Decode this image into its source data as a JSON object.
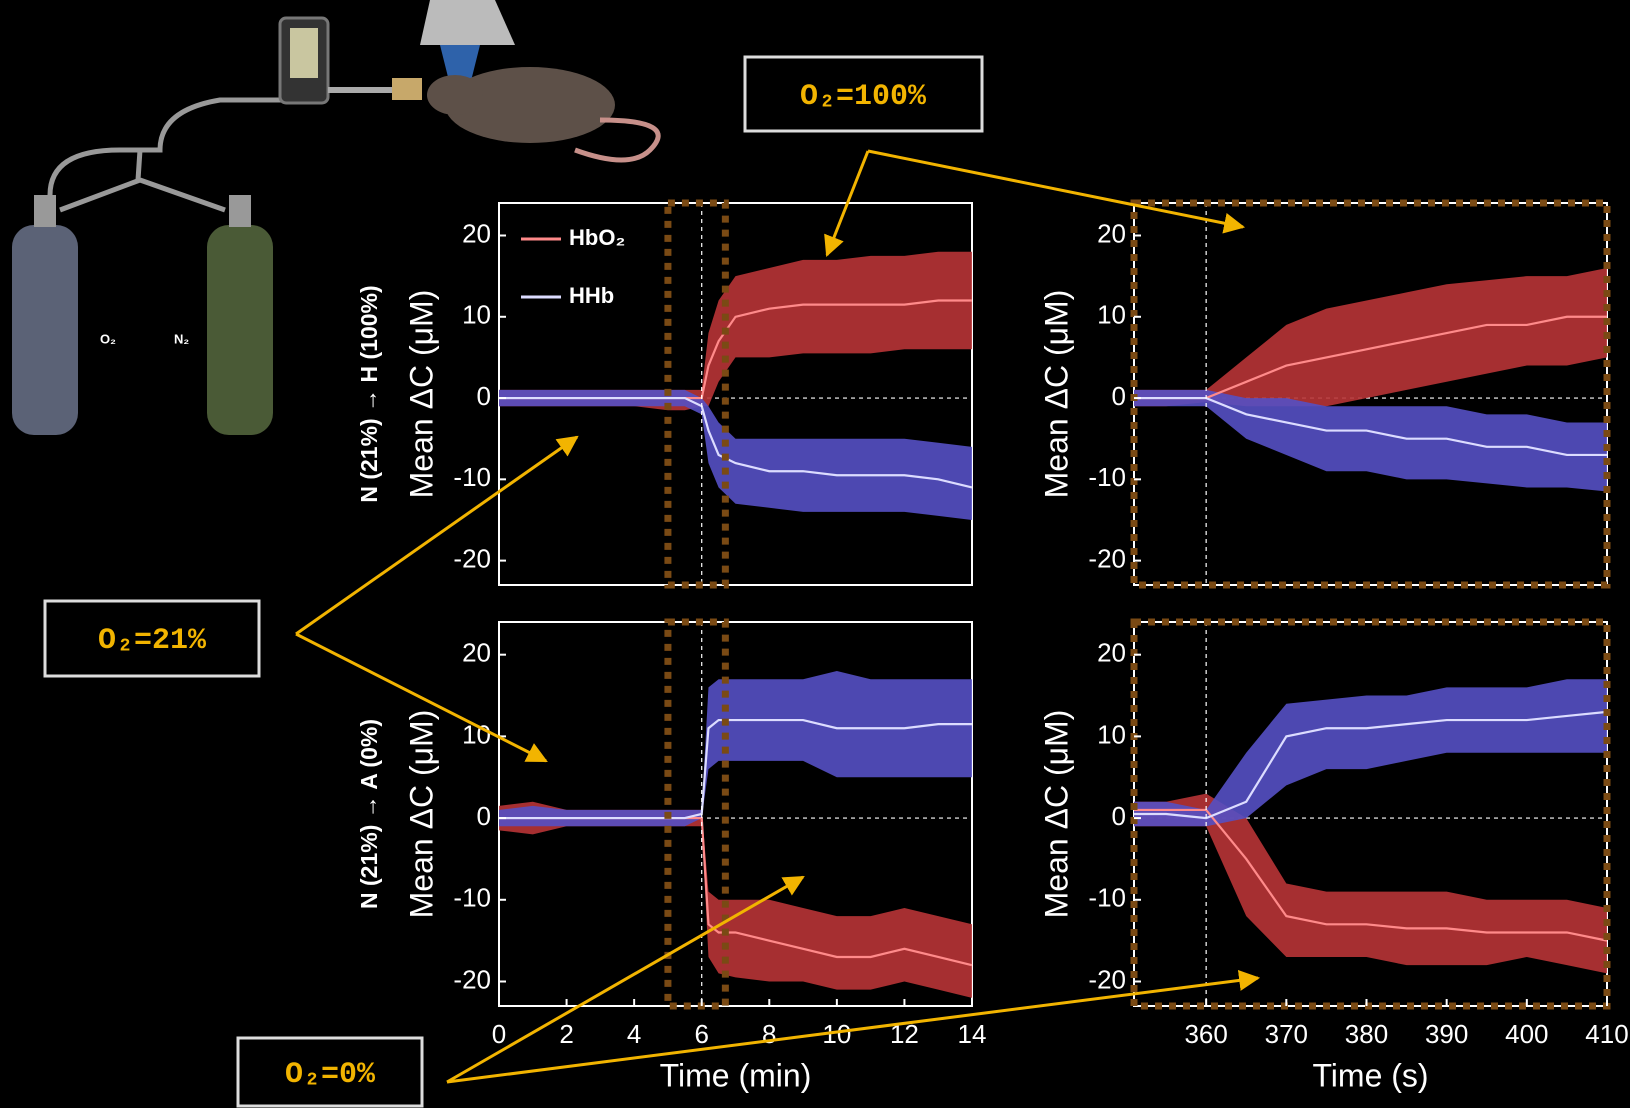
{
  "annotations": [
    "O₂=100%",
    "O₂=21%",
    "O₂=0%"
  ],
  "illustration": {
    "cylinders": [
      "O₂",
      "N₂"
    ]
  },
  "chart_data": [
    {
      "type": "line",
      "row_label": "N (21%) → H (100%)",
      "ylabel": "Mean ΔC (μM)",
      "legend": true,
      "xlim": [
        0,
        14
      ],
      "ylim": [
        -23,
        24
      ],
      "yticks": [
        -20,
        -10,
        0,
        10,
        20
      ],
      "vline": 6,
      "hline": 0,
      "highlight": [
        5,
        6.7
      ],
      "x": [
        0,
        1,
        2,
        3,
        4,
        5,
        5.5,
        6,
        6.2,
        6.5,
        7,
        8,
        9,
        10,
        11,
        12,
        13,
        14
      ],
      "series": [
        {
          "name": "HbO₂",
          "color": "#b83436",
          "line_color": "#ff8a8a",
          "values": [
            0,
            0,
            0,
            0,
            0,
            0,
            0,
            0,
            4,
            7,
            10,
            11,
            11.5,
            11.5,
            11.5,
            11.5,
            12,
            12
          ],
          "lower": [
            -1,
            -1,
            -1,
            -1,
            -1,
            -1.5,
            -1.5,
            -1,
            -1,
            2,
            5,
            5,
            5.5,
            5.5,
            5.5,
            6,
            6,
            6
          ],
          "upper": [
            1,
            1,
            1,
            1,
            1,
            1,
            1,
            1,
            8,
            12,
            15,
            16,
            17,
            17,
            17.5,
            17.5,
            18,
            18
          ]
        },
        {
          "name": "HHb",
          "color": "#5550c4",
          "line_color": "#dcdcff",
          "values": [
            0,
            0,
            0,
            0,
            0,
            0,
            0,
            -1,
            -4,
            -7,
            -8,
            -9,
            -9,
            -9.5,
            -9.5,
            -9.5,
            -10,
            -11
          ],
          "lower": [
            -1,
            -1,
            -1,
            -1,
            -1,
            -1,
            -1,
            -2,
            -8,
            -11,
            -13,
            -13.5,
            -14,
            -14,
            -14,
            -14,
            -14.5,
            -15
          ],
          "upper": [
            1,
            1,
            1,
            1,
            1,
            1,
            1,
            0,
            -1,
            -3,
            -5,
            -5,
            -5,
            -5,
            -5,
            -5,
            -5.5,
            -6
          ]
        }
      ]
    },
    {
      "type": "line",
      "ylabel": "Mean ΔC (μM)",
      "xlim": [
        351,
        410
      ],
      "ylim": [
        -23,
        24
      ],
      "yticks": [
        -20,
        -10,
        0,
        10,
        20
      ],
      "vline": 360,
      "hline": 0,
      "x": [
        351,
        355,
        360,
        365,
        370,
        375,
        380,
        385,
        390,
        395,
        400,
        405,
        410
      ],
      "series": [
        {
          "color": "#b83436",
          "line_color": "#ff8a8a",
          "values": [
            0,
            0,
            0,
            2,
            4,
            5,
            6,
            7,
            8,
            9,
            9,
            10,
            10
          ],
          "lower": [
            -1,
            -1,
            -0.5,
            -1,
            -1,
            -1,
            0,
            1,
            2,
            3,
            4,
            4,
            5
          ],
          "upper": [
            1,
            1,
            1,
            5,
            9,
            11,
            12,
            13,
            14,
            14.5,
            15,
            15,
            16
          ]
        },
        {
          "color": "#5550c4",
          "line_color": "#dcdcff",
          "values": [
            0,
            0,
            0,
            -2,
            -3,
            -4,
            -4,
            -5,
            -5,
            -6,
            -6,
            -7,
            -7
          ],
          "lower": [
            -1,
            -1,
            -1,
            -5,
            -7,
            -9,
            -9,
            -10,
            -10,
            -10.5,
            -11,
            -11,
            -11.5
          ],
          "upper": [
            1,
            1,
            1,
            0,
            0,
            -1,
            -1,
            -1,
            -1,
            -2,
            -2,
            -3,
            -3
          ]
        }
      ]
    },
    {
      "type": "line",
      "row_label": "N (21%) → A (0%)",
      "ylabel": "Mean ΔC (μM)",
      "xlabel": "Time (min)",
      "xlim": [
        0,
        14
      ],
      "xticks": [
        0,
        2,
        4,
        6,
        8,
        10,
        12,
        14
      ],
      "ylim": [
        -23,
        24
      ],
      "yticks": [
        -20,
        -10,
        0,
        10,
        20
      ],
      "vline": 6,
      "hline": 0,
      "highlight": [
        5,
        6.7
      ],
      "x": [
        0,
        1,
        2,
        3,
        4,
        5,
        5.5,
        6,
        6.2,
        6.5,
        7,
        8,
        9,
        10,
        11,
        12,
        13,
        14
      ],
      "series": [
        {
          "color": "#b83436",
          "line_color": "#ff8a8a",
          "values": [
            0,
            0,
            0,
            0,
            0,
            0,
            0,
            0,
            -13,
            -14,
            -14,
            -15,
            -16,
            -17,
            -17,
            -16,
            -17,
            -18
          ],
          "lower": [
            -1.5,
            -2,
            -1,
            -1,
            -1,
            -1,
            -1,
            -1,
            -17,
            -19,
            -19.5,
            -20,
            -20,
            -21,
            -21,
            -20,
            -21,
            -22
          ],
          "upper": [
            1.5,
            2,
            1,
            1,
            1,
            1,
            1,
            1,
            -9,
            -10,
            -10,
            -10,
            -11,
            -12,
            -12,
            -11,
            -12,
            -13
          ]
        },
        {
          "color": "#5550c4",
          "line_color": "#dcdcff",
          "values": [
            0,
            0,
            0,
            0,
            0,
            0,
            0,
            0.5,
            11,
            12,
            12,
            12,
            12,
            11,
            11,
            11,
            11.5,
            11.5
          ],
          "lower": [
            -1,
            -1,
            -1,
            -1,
            -1,
            -1,
            -1,
            0,
            6,
            7,
            7,
            7,
            7,
            5,
            5,
            5,
            5,
            5
          ],
          "upper": [
            1,
            1.5,
            1,
            1,
            1,
            1,
            1,
            1,
            16,
            17,
            17,
            17,
            17,
            18,
            17,
            17,
            17,
            17
          ]
        }
      ]
    },
    {
      "type": "line",
      "ylabel": "Mean ΔC (μM)",
      "xlabel": "Time (s)",
      "xlim": [
        351,
        410
      ],
      "xticks": [
        360,
        370,
        380,
        390,
        400,
        410
      ],
      "ylim": [
        -23,
        24
      ],
      "yticks": [
        -20,
        -10,
        0,
        10,
        20
      ],
      "vline": 360,
      "hline": 0,
      "x": [
        351,
        355,
        360,
        365,
        370,
        375,
        380,
        385,
        390,
        395,
        400,
        405,
        410
      ],
      "series": [
        {
          "color": "#b83436",
          "line_color": "#ff8a8a",
          "values": [
            1,
            1,
            1,
            -5,
            -12,
            -13,
            -13,
            -13.5,
            -13.5,
            -14,
            -14,
            -14,
            -15
          ],
          "lower": [
            -1,
            -1,
            -1,
            -12,
            -17,
            -17,
            -17,
            -18,
            -18,
            -18,
            -17,
            -18,
            -19
          ],
          "upper": [
            2,
            2,
            3,
            0,
            -8,
            -9,
            -9,
            -9,
            -9,
            -10,
            -10,
            -10,
            -11
          ]
        },
        {
          "color": "#5550c4",
          "line_color": "#dcdcff",
          "values": [
            0.5,
            0.5,
            0,
            2,
            10,
            11,
            11,
            11.5,
            12,
            12,
            12,
            12.5,
            13
          ],
          "lower": [
            -1,
            -1,
            -1,
            0,
            4,
            6,
            6,
            7,
            8,
            8,
            8,
            8,
            8
          ],
          "upper": [
            2,
            2,
            1,
            8,
            14,
            14.5,
            15,
            15,
            16,
            16,
            16,
            17,
            17
          ]
        }
      ]
    }
  ]
}
